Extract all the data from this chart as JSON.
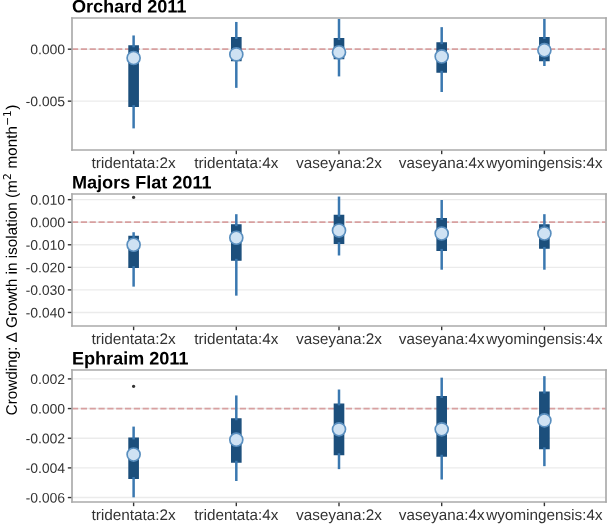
{
  "chart_data": [
    {
      "type": "box",
      "title": "Orchard 2011",
      "categories": [
        "tridentata:2x",
        "tridentata:4x",
        "vaseyana:2x",
        "vaseyana:4x",
        "wyomingensis:4x"
      ],
      "color": "#1c4f7c",
      "boxes": [
        {
          "low": -0.0075,
          "q1": -0.0055,
          "median": -0.00085,
          "q3": 0.0003,
          "high": 0.0012
        },
        {
          "low": -0.0036,
          "q1": -0.0011,
          "median": -0.0005,
          "q3": 0.0011,
          "high": 0.0025
        },
        {
          "low": -0.0025,
          "q1": -0.0009,
          "median": -0.0003,
          "q3": 0.001,
          "high": 0.0028
        },
        {
          "low": -0.004,
          "q1": -0.0022,
          "median": -0.0007,
          "q3": 0.0006,
          "high": 0.002
        },
        {
          "low": -0.0015,
          "q1": -0.0011,
          "median": -0.0001,
          "q3": 0.0011,
          "high": 0.0028
        }
      ],
      "ylim": [
        -0.0097,
        0.003
      ],
      "yticks": [
        {
          "value": -0.005,
          "label": "-0.005"
        },
        {
          "value": 0,
          "label": "0.000"
        }
      ],
      "grid": "y",
      "ref_lines": [
        {
          "axis": "y",
          "value": 0,
          "color": "#d8a0a0",
          "line_style": "dashed"
        }
      ]
    },
    {
      "type": "box",
      "title": "Majors Flat 2011",
      "ylabel": "Crowding: Δ Growth in isolation (m$^{2}$ month$^{−1}$)",
      "categories": [
        "tridentata:2x",
        "tridentata:4x",
        "vaseyana:2x",
        "vaseyana:4x",
        "wyomingensis:4x"
      ],
      "color": "#1c4f7c",
      "boxes": [
        {
          "low": -0.028,
          "q1": -0.02,
          "median": -0.01,
          "q3": -0.0063,
          "high": -0.005,
          "outliers": [
            0.011
          ]
        },
        {
          "low": -0.032,
          "q1": -0.0168,
          "median": -0.0069,
          "q3": -0.0012,
          "high": 0.003
        },
        {
          "low": -0.0142,
          "q1": -0.0094,
          "median": -0.0037,
          "q3": 0.003,
          "high": 0.0108
        },
        {
          "low": -0.0205,
          "q1": -0.0124,
          "median": -0.005,
          "q3": 0.0016,
          "high": 0.0093
        },
        {
          "low": -0.0205,
          "q1": -0.0115,
          "median": -0.005,
          "q3": -0.0012,
          "high": 0.003
        }
      ],
      "ylim": [
        -0.046,
        0.0125
      ],
      "yticks": [
        {
          "value": -0.04,
          "label": "-0.040"
        },
        {
          "value": -0.03,
          "label": "-0.030"
        },
        {
          "value": -0.02,
          "label": "-0.020"
        },
        {
          "value": -0.01,
          "label": "-0.010"
        },
        {
          "value": 0,
          "label": "0.000"
        },
        {
          "value": 0.01,
          "label": "0.010"
        }
      ],
      "grid": "y",
      "ref_lines": [
        {
          "axis": "y",
          "value": 0,
          "color": "#d8a0a0",
          "line_style": "dashed"
        }
      ]
    },
    {
      "type": "box",
      "title": "Ephraim 2011",
      "categories": [
        "tridentata:2x",
        "tridentata:4x",
        "vaseyana:2x",
        "vaseyana:4x",
        "wyomingensis:4x"
      ],
      "color": "#1c4f7c",
      "boxes": [
        {
          "low": -0.0059,
          "q1": -0.0047,
          "median": -0.0031,
          "q3": -0.002,
          "high": -0.0013,
          "outliers": [
            0.0015
          ]
        },
        {
          "low": -0.0048,
          "q1": -0.0036,
          "median": -0.0021,
          "q3": -0.0007,
          "high": 0.0008
        },
        {
          "low": -0.004,
          "q1": -0.0031,
          "median": -0.0014,
          "q3": 0.0003,
          "high": 0.0012
        },
        {
          "low": -0.0047,
          "q1": -0.0032,
          "median": -0.0014,
          "q3": 0.0008,
          "high": 0.002
        },
        {
          "low": -0.0038,
          "q1": -0.0027,
          "median": -0.0008,
          "q3": 0.0011,
          "high": 0.0021
        }
      ],
      "ylim": [
        -0.0063,
        0.0026
      ],
      "yticks": [
        {
          "value": -0.006,
          "label": "-0.006"
        },
        {
          "value": -0.004,
          "label": "-0.004"
        },
        {
          "value": -0.002,
          "label": "-0.002"
        },
        {
          "value": 0,
          "label": "0.000"
        },
        {
          "value": 0.002,
          "label": "0.002"
        }
      ],
      "grid": "y",
      "ref_lines": [
        {
          "axis": "y",
          "value": 0,
          "color": "#d8a0a0",
          "line_style": "dashed"
        }
      ]
    }
  ]
}
